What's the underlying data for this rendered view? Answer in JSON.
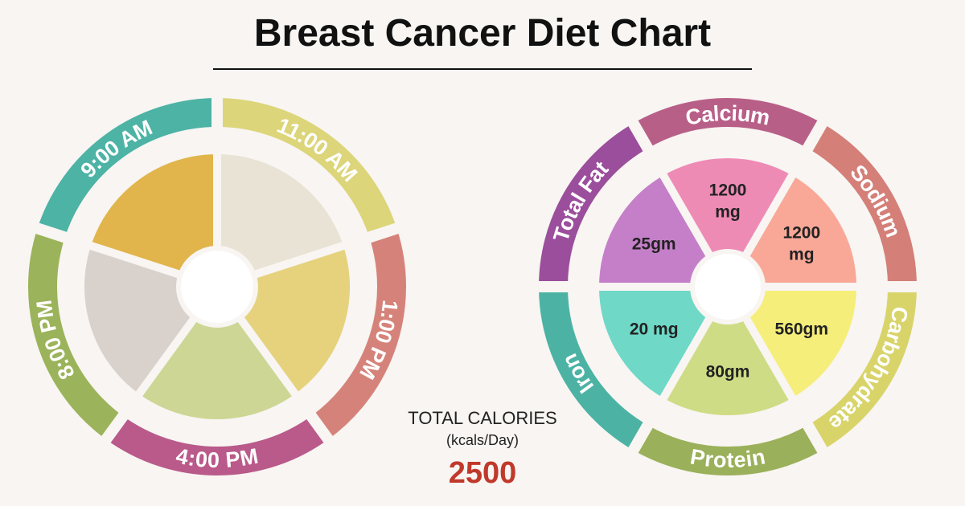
{
  "title": "Breast Cancer Diet Chart",
  "meal_times": [
    "9:00 AM",
    "11:00 AM",
    "1:00 PM",
    "4:00 PM",
    "8:00 PM"
  ],
  "nutrients": [
    {
      "name": "Total Fat",
      "value": "25gm"
    },
    {
      "name": "Calcium",
      "value": "1200 mg"
    },
    {
      "name": "Sodium",
      "value": "1200 mg"
    },
    {
      "name": "Carbohydrate",
      "value": "560gm"
    },
    {
      "name": "Protein",
      "value": "80gm"
    },
    {
      "name": "Iron",
      "value": "20 mg"
    }
  ],
  "total_calories": {
    "label": "TOTAL CALORIES",
    "unit": "(kcals/Day)",
    "value": "2500"
  }
}
